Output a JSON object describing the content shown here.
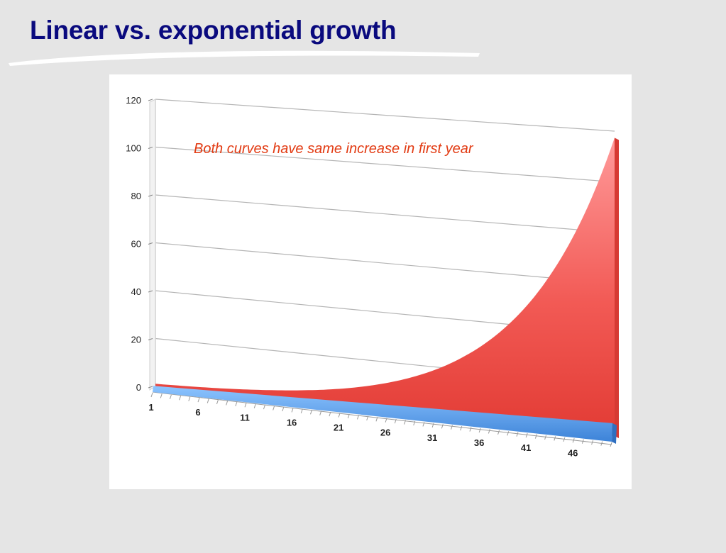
{
  "slide": {
    "title": "Linear vs. exponential growth",
    "title_color": "#0a0a7e",
    "background": "#e5e5e5"
  },
  "chart_data": {
    "type": "area",
    "title": "",
    "xlabel": "",
    "ylabel": "",
    "projection": "3d-perspective",
    "grid": true,
    "ylim": [
      0,
      120
    ],
    "yticks": [
      0,
      20,
      40,
      60,
      80,
      100,
      120
    ],
    "xlim": [
      1,
      50
    ],
    "xticks": [
      1,
      6,
      11,
      16,
      21,
      26,
      31,
      36,
      41,
      46
    ],
    "annotation": "Both curves have same increase in first year",
    "annotation_color": "#e23a12",
    "series": [
      {
        "color": "#e8453c",
        "x": [
          1,
          5,
          10,
          15,
          20,
          25,
          30,
          35,
          40,
          45,
          50
        ],
        "values": [
          1.1,
          1.6,
          2.6,
          4.2,
          6.7,
          10.8,
          17.4,
          28.1,
          45.3,
          73.0,
          117.4
        ]
      },
      {
        "color": "#4a90e2",
        "x": [
          1,
          50
        ],
        "values": [
          1.1,
          5.9
        ]
      }
    ]
  }
}
